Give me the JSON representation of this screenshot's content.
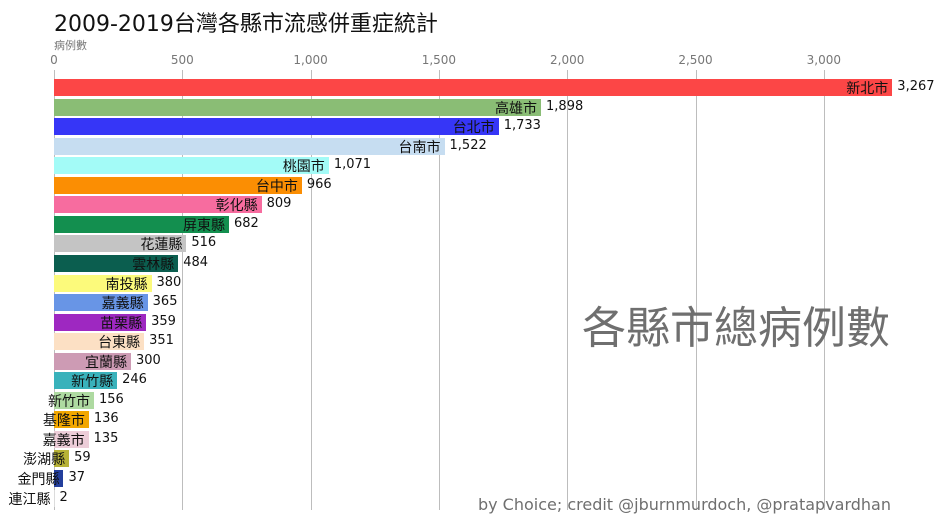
{
  "chart_data": {
    "type": "bar",
    "orientation": "horizontal",
    "title": "2009-2019台灣各縣市流感併重症統計",
    "xlabel": "病例數",
    "ylabel": "",
    "xlim": [
      0,
      3300
    ],
    "xticks": [
      0,
      500,
      1000,
      1500,
      2000,
      2500,
      3000
    ],
    "xtick_labels": [
      "0",
      "500",
      "1,000",
      "1,500",
      "2,000",
      "2,500",
      "3,000"
    ],
    "grid": true,
    "legend": null,
    "annotation": "各縣市總病例數",
    "credit": "by Choice; credit @jburnmurdoch, @pratapvardhan",
    "categories": [
      "新北市",
      "高雄市",
      "台北市",
      "台南市",
      "桃園市",
      "台中市",
      "彰化縣",
      "屏東縣",
      "花蓮縣",
      "雲林縣",
      "南投縣",
      "嘉義縣",
      "苗栗縣",
      "台東縣",
      "宜蘭縣",
      "新竹縣",
      "新竹市",
      "基隆市",
      "嘉義市",
      "澎湖縣",
      "金門縣",
      "連江縣"
    ],
    "values": [
      3267,
      1898,
      1733,
      1522,
      1071,
      966,
      809,
      682,
      516,
      484,
      380,
      365,
      359,
      351,
      300,
      246,
      156,
      136,
      135,
      59,
      37,
      2
    ],
    "value_labels": [
      "3,267",
      "1,898",
      "1,733",
      "1,522",
      "1,071",
      "966",
      "809",
      "682",
      "516",
      "484",
      "380",
      "365",
      "359",
      "351",
      "300",
      "246",
      "156",
      "136",
      "135",
      "59",
      "37",
      "2"
    ],
    "colors": [
      "#fc4646",
      "#8abd75",
      "#3636f7",
      "#c6ddf1",
      "#a3fbf7",
      "#fb8e03",
      "#f76c9f",
      "#138f4f",
      "#c4c4c4",
      "#0b5e4f",
      "#fcfa7b",
      "#6895e6",
      "#9e28c1",
      "#fce0c4",
      "#cd9bb4",
      "#39b2bb",
      "#aedaa1",
      "#f2a700",
      "#eccdd8",
      "#b7b236",
      "#233e9c",
      "#dcdcdc"
    ]
  },
  "header": {
    "title": "2009-2019台灣各縣市流感併重症統計",
    "axis_label": "病例數"
  },
  "axis": {
    "ticks": [
      "0",
      "500",
      "1,000",
      "1,500",
      "2,000",
      "2,500",
      "3,000"
    ]
  },
  "overlay": {
    "watermark": "各縣市總病例數",
    "credit": "by Choice; credit @jburnmurdoch, @pratapvardhan"
  }
}
